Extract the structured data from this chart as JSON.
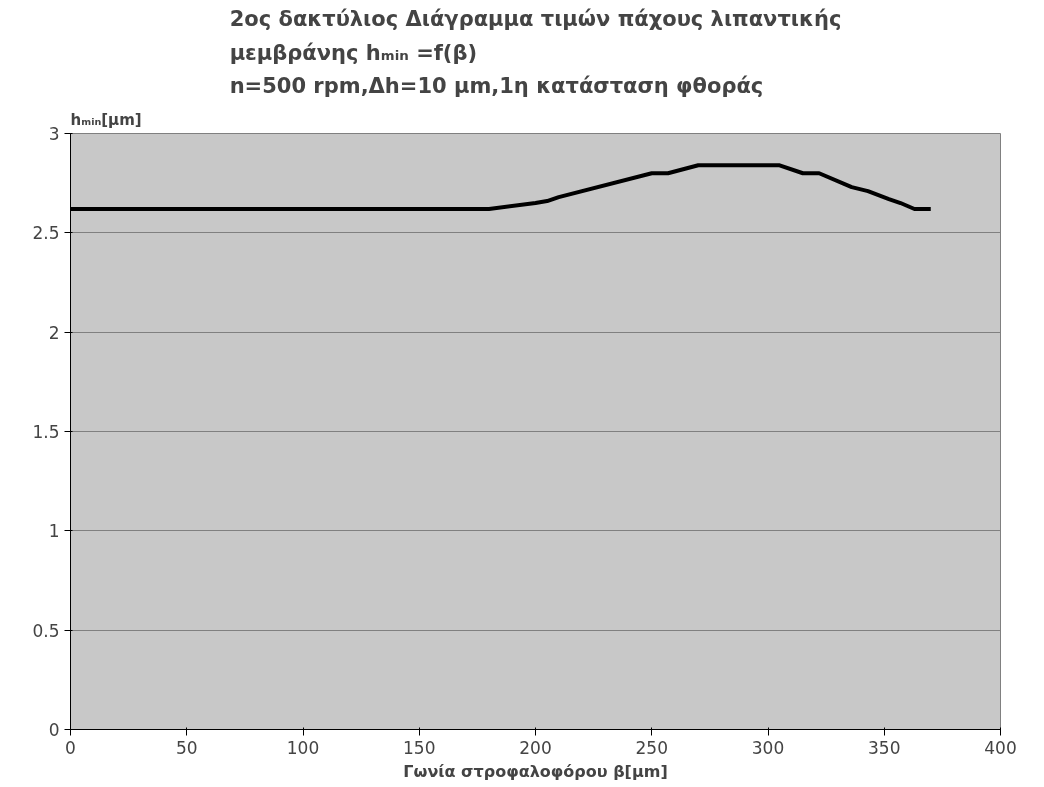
{
  "chart_data": {
    "type": "line",
    "title": "2ος δακτύλιος Διάγραμμα τιμών πάχους λιπαντικής\nμεμβράνης hₘᵢₙ =f(β)\nn=500 rpm,Δh=10 μm,1η κατάσταση φθοράς",
    "xlabel": "Γωνία στροφαλοφόρου β[μm]",
    "ylabel": "hₘᵢₙ[μm]",
    "x": [
      0,
      180,
      200,
      205,
      210,
      250,
      257,
      270,
      305,
      315,
      322,
      336,
      343,
      352,
      357,
      363,
      370
    ],
    "series": [
      {
        "color": "#000000",
        "values": [
          2.62,
          2.62,
          2.65,
          2.66,
          2.68,
          2.8,
          2.8,
          2.84,
          2.84,
          2.8,
          2.8,
          2.73,
          2.71,
          2.67,
          2.65,
          2.62,
          2.62
        ]
      }
    ],
    "xlim": [
      0,
      400
    ],
    "xticks": [
      0,
      50,
      100,
      150,
      200,
      250,
      300,
      350,
      400
    ],
    "ylim": [
      0,
      3
    ],
    "yticks": [
      0,
      0.5,
      1,
      1.5,
      2,
      2.5,
      3
    ],
    "grid": "y",
    "marker": "none",
    "line_style": "solid"
  }
}
